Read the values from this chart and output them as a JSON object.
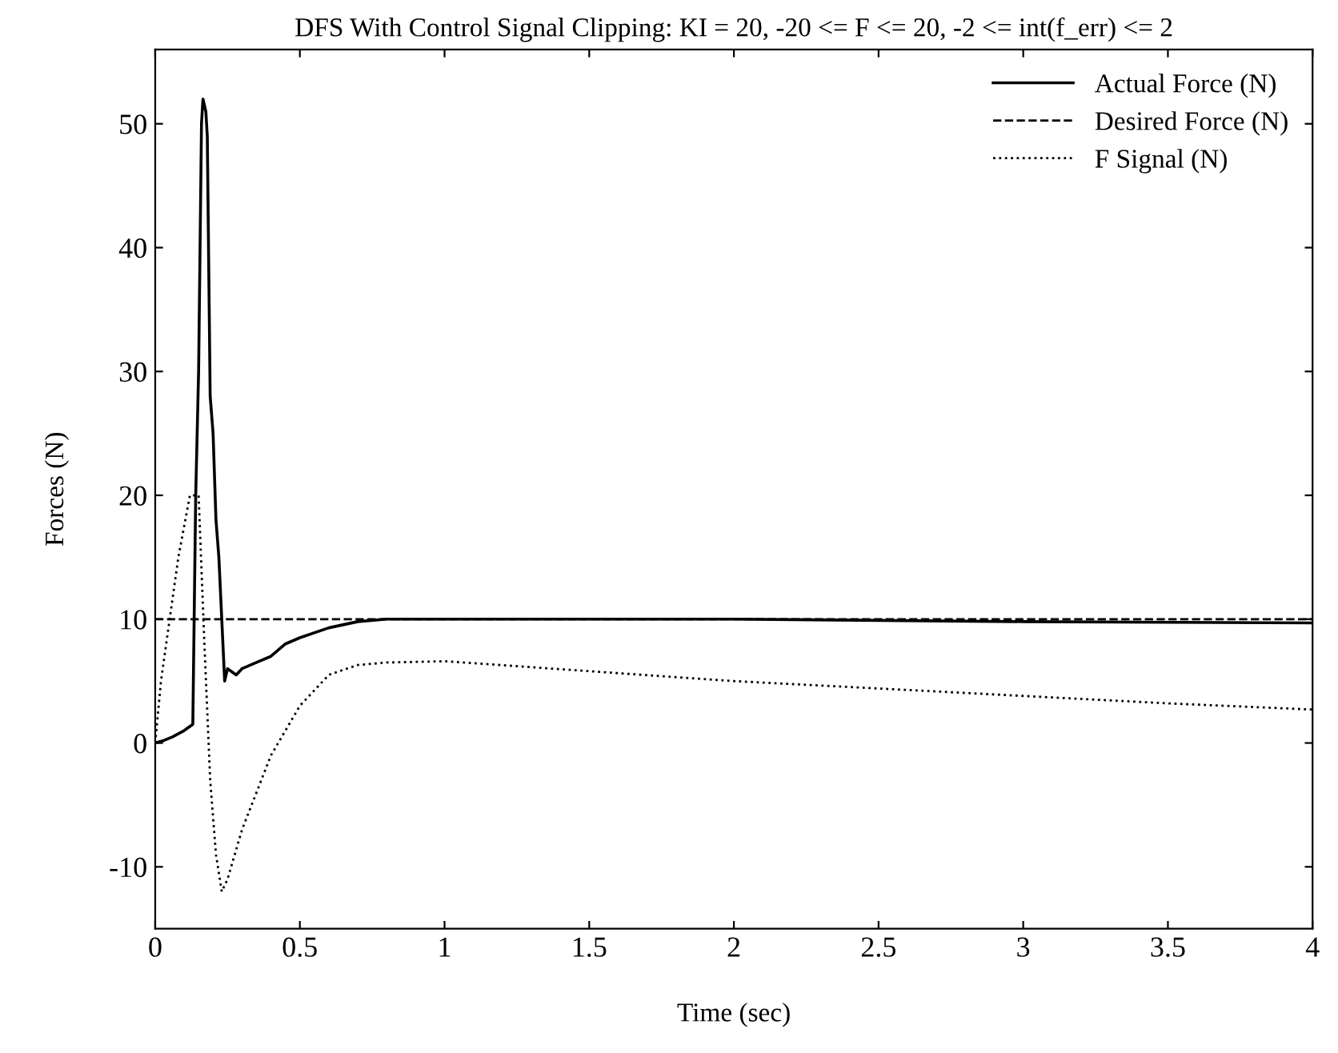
{
  "chart_data": {
    "type": "line",
    "title": "DFS With Control Signal Clipping: KI = 20, -20 <= F <= 20, -2 <= int(f_err) <= 2",
    "xlabel": "Time (sec)",
    "ylabel": "Forces (N)",
    "xlim": [
      0,
      4
    ],
    "ylim": [
      -15,
      56
    ],
    "xticks": [
      0,
      0.5,
      1,
      1.5,
      2,
      2.5,
      3,
      3.5,
      4
    ],
    "yticks": [
      -10,
      0,
      10,
      20,
      30,
      40,
      50
    ],
    "grid": false,
    "legend": "top right",
    "series": [
      {
        "name": "Actual Force (N)",
        "color": "#000000",
        "line_style": "solid",
        "x": [
          0,
          0.03,
          0.06,
          0.1,
          0.13,
          0.14,
          0.15,
          0.16,
          0.165,
          0.175,
          0.18,
          0.19,
          0.2,
          0.21,
          0.22,
          0.23,
          0.24,
          0.25,
          0.28,
          0.3,
          0.35,
          0.4,
          0.45,
          0.5,
          0.6,
          0.7,
          0.8,
          1,
          1.5,
          2,
          3,
          4
        ],
        "values": [
          0,
          0.2,
          0.5,
          1,
          1.5,
          20,
          30,
          50,
          52,
          51,
          49,
          28,
          25,
          18,
          15,
          10,
          5,
          6,
          5.5,
          6,
          6.5,
          7,
          8,
          8.5,
          9.3,
          9.8,
          10,
          10,
          10,
          10,
          9.8,
          9.7
        ]
      },
      {
        "name": "Desired Force (N)",
        "color": "#000000",
        "line_style": "dashed",
        "x": [
          0,
          4
        ],
        "values": [
          10,
          10
        ]
      },
      {
        "name": "F Signal (N)",
        "color": "#000000",
        "line_style": "dotted",
        "x": [
          0,
          0.02,
          0.05,
          0.08,
          0.12,
          0.15,
          0.17,
          0.19,
          0.21,
          0.23,
          0.25,
          0.3,
          0.35,
          0.4,
          0.5,
          0.6,
          0.7,
          0.8,
          1,
          1.5,
          2,
          2.5,
          3,
          3.5,
          4
        ],
        "values": [
          0,
          5,
          10,
          15,
          20,
          20,
          8,
          -3,
          -9,
          -12,
          -11,
          -7,
          -4,
          -1,
          3,
          5.5,
          6.3,
          6.5,
          6.6,
          5.8,
          5,
          4.4,
          3.8,
          3.2,
          2.7
        ]
      }
    ]
  }
}
